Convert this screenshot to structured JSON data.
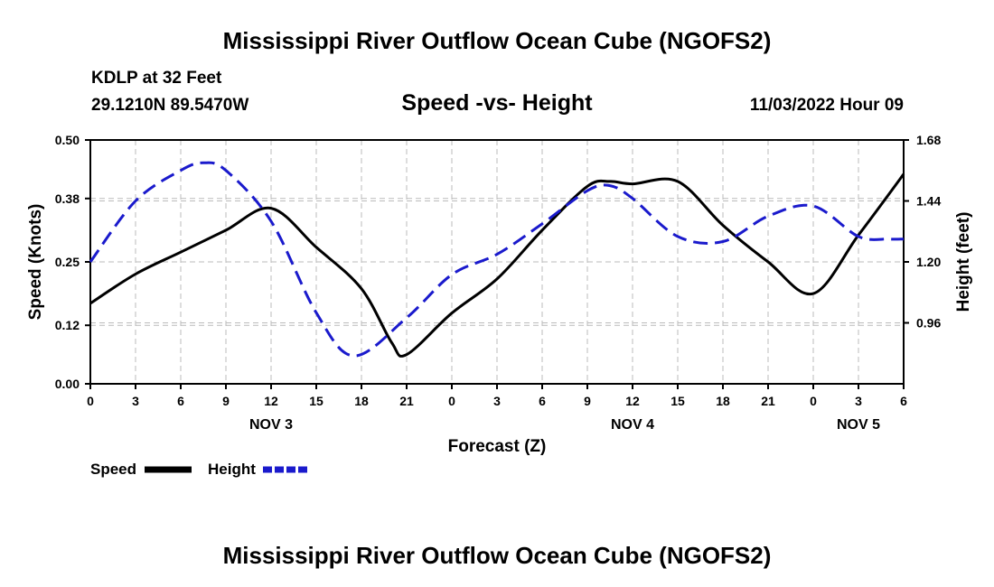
{
  "header": {
    "title": "Mississippi River Outflow Ocean Cube (NGOFS2)",
    "station": "KDLP at 32 Feet",
    "coords": "29.1210N  89.5470W",
    "subtitle": "Speed -vs- Height",
    "datetime": "11/03/2022 Hour 09"
  },
  "footer": {
    "title": "Mississippi River Outflow Ocean Cube (NGOFS2)"
  },
  "legend": {
    "speed_label": "Speed",
    "height_label": "Height"
  },
  "colors": {
    "speed": "#000000",
    "height": "#1a1acc",
    "grid": "#bbbbbb"
  },
  "chart_data": {
    "type": "line",
    "xlabel": "Forecast (Z)",
    "ylabel": "Speed (Knots)",
    "y2label": "Height (feet)",
    "xlim": [
      0,
      54
    ],
    "ylim": [
      0,
      0.5
    ],
    "y2lim": [
      0.72,
      1.68
    ],
    "x_ticks": [
      0,
      3,
      6,
      9,
      12,
      15,
      18,
      21,
      24,
      27,
      30,
      33,
      36,
      39,
      42,
      45,
      48,
      51,
      54
    ],
    "x_tick_labels": [
      "0",
      "3",
      "6",
      "9",
      "12",
      "15",
      "18",
      "21",
      "0",
      "3",
      "6",
      "9",
      "12",
      "15",
      "18",
      "21",
      "0",
      "3",
      "6"
    ],
    "day_labels": [
      {
        "x": 12,
        "label": "NOV 3"
      },
      {
        "x": 36,
        "label": "NOV 4"
      },
      {
        "x": 51,
        "label": "NOV 5"
      }
    ],
    "y_ticks": [
      0.0,
      0.12,
      0.25,
      0.38,
      0.5
    ],
    "y_tick_labels": [
      "0.00",
      "0.12",
      "0.25",
      "0.38",
      "0.50"
    ],
    "y2_ticks": [
      0.96,
      1.2,
      1.44,
      1.68
    ],
    "y2_tick_labels": [
      "0.96",
      "1.20",
      "1.44",
      "1.68"
    ],
    "series": [
      {
        "name": "Speed",
        "axis": "left",
        "style": "solid",
        "x": [
          0,
          3,
          6,
          9,
          12,
          15,
          18,
          20,
          21,
          24,
          27,
          30,
          33,
          34.5,
          36,
          39,
          42,
          45,
          48,
          51,
          54
        ],
        "values": [
          0.165,
          0.225,
          0.27,
          0.315,
          0.36,
          0.28,
          0.195,
          0.085,
          0.06,
          0.145,
          0.215,
          0.315,
          0.405,
          0.415,
          0.41,
          0.415,
          0.325,
          0.25,
          0.185,
          0.305,
          0.43
        ]
      },
      {
        "name": "Height",
        "axis": "right",
        "style": "dashed",
        "x": [
          0,
          3,
          6,
          7.5,
          9,
          12,
          15,
          17.5,
          21,
          24,
          27,
          30,
          33,
          34.5,
          36,
          39,
          42,
          45,
          48,
          51,
          53,
          54
        ],
        "values": [
          1.2,
          1.44,
          1.56,
          1.59,
          1.56,
          1.36,
          1.0,
          0.83,
          0.98,
          1.15,
          1.23,
          1.35,
          1.48,
          1.5,
          1.45,
          1.3,
          1.28,
          1.38,
          1.42,
          1.3,
          1.29,
          1.29
        ]
      }
    ]
  }
}
